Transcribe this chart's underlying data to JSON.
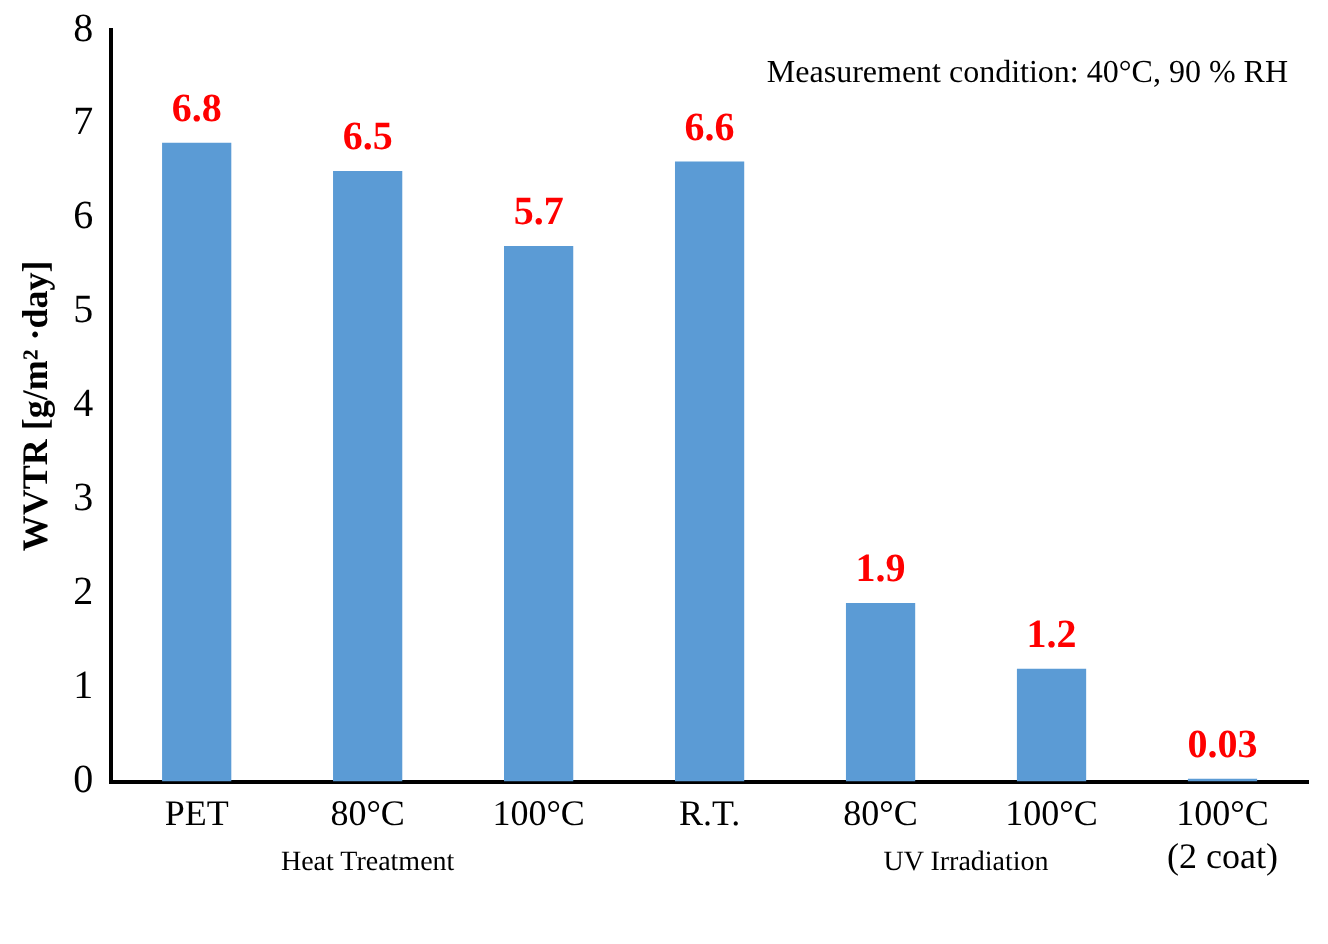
{
  "chart_data": {
    "type": "bar",
    "ylabel": "WVTR [g/m² ·day]",
    "categories": [
      "PET",
      "80°C",
      "100°C",
      "R.T.",
      "80°C",
      "100°C",
      "100°C\n(2 coat)"
    ],
    "values": [
      6.8,
      6.5,
      5.7,
      6.6,
      1.9,
      1.2,
      0.03
    ],
    "color": "#5b9bd5",
    "ylim": [
      0,
      8
    ],
    "yticks": [
      0,
      1,
      2,
      3,
      4,
      5,
      6,
      7,
      8
    ],
    "grid": false,
    "legend": false,
    "data_labels": true,
    "annotations": [
      "Measurement condition: 40°C, 90 % RH",
      "Heat Treatment",
      "UV Irradiation"
    ]
  }
}
